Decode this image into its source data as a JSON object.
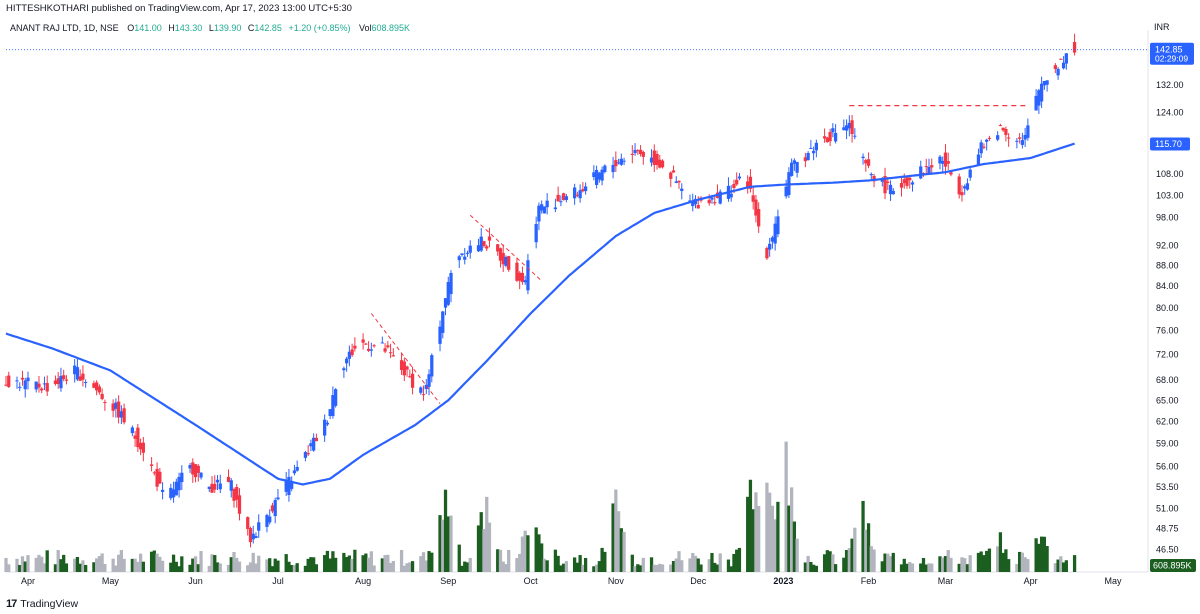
{
  "header": {
    "publisher_line": "HITTESHKOTHARI published on TradingView.com, Apr 17, 2023 13:00 UTC+5:30",
    "symbol": "ANANT RAJ LTD, 1D, NSE",
    "o_label": "O",
    "o_value": "141.00",
    "h_label": "H",
    "h_value": "143.30",
    "l_label": "L",
    "l_value": "139.90",
    "c_label": "C",
    "c_value": "142.85",
    "change": "+1.20 (+0.85%)",
    "vol_label": "Vol",
    "vol_value": "608.895K",
    "currency": "INR"
  },
  "footer": {
    "brand": "TradingView",
    "logo_glyph": "17"
  },
  "colors": {
    "up": "#2962ff",
    "down": "#f23645",
    "ma": "#2962ff",
    "vol_green": "#1b5e20",
    "vol_gray": "#b2b5be",
    "resistance": "#f23645"
  },
  "chart_data": {
    "type": "candlestick",
    "y_scale": "log",
    "y_ticks": [
      46.5,
      48.75,
      51.0,
      53.5,
      56.0,
      59.0,
      62.0,
      65.0,
      68.0,
      72.0,
      76.0,
      80.0,
      84.0,
      88.0,
      92.0,
      98.0,
      103.0,
      108.0,
      115.7,
      124.0,
      132.0,
      142.85
    ],
    "y_tick_labels": [
      "46.50",
      "48.75",
      "51.00",
      "53.50",
      "56.00",
      "59.00",
      "62.00",
      "65.00",
      "68.00",
      "72.00",
      "76.00",
      "80.00",
      "84.00",
      "88.00",
      "92.00",
      "98.00",
      "103.00",
      "108.00",
      "115.70",
      "124.00",
      "132.00",
      "142.85"
    ],
    "x_tick_labels": [
      "Apr",
      "May",
      "Jun",
      "Jul",
      "Aug",
      "Sep",
      "Oct",
      "Nov",
      "Dec",
      "2023",
      "Feb",
      "Mar",
      "Apr",
      "May"
    ],
    "x_tick_dates": [
      "2022-04-01",
      "2022-05-01",
      "2022-06-01",
      "2022-07-01",
      "2022-08-01",
      "2022-09-01",
      "2022-10-01",
      "2022-11-01",
      "2022-12-01",
      "2023-01-01",
      "2023-02-01",
      "2023-03-01",
      "2023-04-01",
      "2023-05-01"
    ],
    "last_price_label": "142.85",
    "countdown_label": "02:29:09",
    "ma_value_label": "115.70",
    "volume_value_label": "608.895K",
    "price_path": [
      [
        "2022-03-24",
        68.0
      ],
      [
        "2022-04-10",
        67.0
      ],
      [
        "2022-04-20",
        69.5
      ],
      [
        "2022-05-05",
        63.5
      ],
      [
        "2022-05-15",
        58.0
      ],
      [
        "2022-05-22",
        52.0
      ],
      [
        "2022-06-01",
        56.0
      ],
      [
        "2022-06-07",
        53.5
      ],
      [
        "2022-06-15",
        54.0
      ],
      [
        "2022-06-22",
        47.5
      ],
      [
        "2022-06-30",
        51.0
      ],
      [
        "2022-07-10",
        56.0
      ],
      [
        "2022-07-20",
        62.0
      ],
      [
        "2022-07-25",
        70.0
      ],
      [
        "2022-08-01",
        74.0
      ],
      [
        "2022-08-10",
        73.0
      ],
      [
        "2022-08-20",
        68.0
      ],
      [
        "2022-08-25",
        66.0
      ],
      [
        "2022-08-31",
        79.0
      ],
      [
        "2022-09-05",
        90.0
      ],
      [
        "2022-09-15",
        93.0
      ],
      [
        "2022-09-25",
        88.0
      ],
      [
        "2022-09-30",
        84.5
      ],
      [
        "2022-10-05",
        100.0
      ],
      [
        "2022-10-20",
        104.0
      ],
      [
        "2022-10-31",
        110.0
      ],
      [
        "2022-11-10",
        114.0
      ],
      [
        "2022-11-20",
        110.0
      ],
      [
        "2022-11-30",
        101.0
      ],
      [
        "2022-12-10",
        103.0
      ],
      [
        "2022-12-20",
        107.0
      ],
      [
        "2022-12-27",
        90.0
      ],
      [
        "2023-01-05",
        109.0
      ],
      [
        "2023-01-15",
        116.0
      ],
      [
        "2023-01-26",
        121.0
      ],
      [
        "2023-02-01",
        110.0
      ],
      [
        "2023-02-10",
        104.0
      ],
      [
        "2023-02-20",
        108.0
      ],
      [
        "2023-03-01",
        112.0
      ],
      [
        "2023-03-08",
        104.0
      ],
      [
        "2023-03-15",
        114.0
      ],
      [
        "2023-03-22",
        120.0
      ],
      [
        "2023-03-31",
        116.0
      ],
      [
        "2023-04-06",
        132.0
      ],
      [
        "2023-04-17",
        142.85
      ]
    ],
    "ma_path": [
      [
        "2022-03-24",
        75.5
      ],
      [
        "2022-04-10",
        73.0
      ],
      [
        "2022-05-01",
        69.5
      ],
      [
        "2022-06-01",
        61.5
      ],
      [
        "2022-07-01",
        54.5
      ],
      [
        "2022-07-10",
        53.8
      ],
      [
        "2022-07-20",
        54.5
      ],
      [
        "2022-08-01",
        57.5
      ],
      [
        "2022-08-20",
        61.5
      ],
      [
        "2022-09-01",
        65.0
      ],
      [
        "2022-09-15",
        71.0
      ],
      [
        "2022-10-01",
        79.0
      ],
      [
        "2022-10-15",
        86.0
      ],
      [
        "2022-11-01",
        94.0
      ],
      [
        "2022-11-15",
        99.0
      ],
      [
        "2022-12-01",
        102.0
      ],
      [
        "2022-12-20",
        105.0
      ],
      [
        "2023-01-01",
        105.5
      ],
      [
        "2023-01-20",
        106.0
      ],
      [
        "2023-02-01",
        106.5
      ],
      [
        "2023-03-01",
        108.5
      ],
      [
        "2023-03-15",
        110.5
      ],
      [
        "2023-04-01",
        112.0
      ],
      [
        "2023-04-17",
        115.7
      ]
    ],
    "volume_peaks": [
      [
        "2022-08-31",
        0.7
      ],
      [
        "2022-09-15",
        0.55
      ],
      [
        "2022-10-01",
        0.45
      ],
      [
        "2022-11-01",
        0.55
      ],
      [
        "2022-12-25",
        0.95
      ],
      [
        "2022-12-20",
        0.65
      ],
      [
        "2023-01-29",
        0.55
      ],
      [
        "2023-01-02",
        0.9
      ],
      [
        "2023-03-20",
        0.3
      ],
      [
        "2023-04-05",
        0.33
      ]
    ],
    "trendlines": [
      {
        "start": [
          "2022-08-04",
          79.0
        ],
        "end": [
          "2022-08-29",
          64.5
        ]
      },
      {
        "start": [
          "2022-09-09",
          98.5
        ],
        "end": [
          "2022-10-05",
          85.0
        ]
      }
    ],
    "resistance_line": {
      "start": [
        "2023-01-25",
        126.0
      ],
      "end": [
        "2023-03-31",
        126.0
      ]
    }
  }
}
